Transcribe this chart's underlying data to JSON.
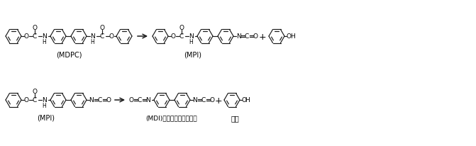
{
  "bg_color": "#ffffff",
  "line_color": "#1a1a1a",
  "figsize": [
    6.71,
    2.07
  ],
  "dpi": 100,
  "label_MDPC": "(MDPC)",
  "label_MPI_top": "(MPI)",
  "label_MPI_bot": "(MPI)",
  "label_MDI": "(MDI)二苯甲烷二异氰酸酔",
  "label_phenol_top": "",
  "label_phenol_bot": "苯酔",
  "ring_r": 11,
  "lw": 0.85
}
